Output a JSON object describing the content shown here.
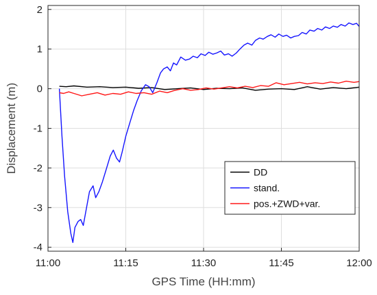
{
  "chart_data": {
    "type": "line",
    "title": "",
    "xlabel": "GPS Time (HH:mm)",
    "ylabel": "Displacement (m)",
    "x_unit": "minutes after 11:00",
    "xlim": [
      0,
      60
    ],
    "ylim": [
      -4.1,
      2.1
    ],
    "x_ticks": [
      {
        "value": 0,
        "label": "11:00"
      },
      {
        "value": 15,
        "label": "11:15"
      },
      {
        "value": 30,
        "label": "11:30"
      },
      {
        "value": 45,
        "label": "11:45"
      },
      {
        "value": 60,
        "label": "12:00"
      }
    ],
    "y_ticks": [
      {
        "value": 2,
        "label": "2"
      },
      {
        "value": 1,
        "label": "1"
      },
      {
        "value": 0,
        "label": "0"
      },
      {
        "value": -1,
        "label": "-1"
      },
      {
        "value": -2,
        "label": "-2"
      },
      {
        "value": -3,
        "label": "-3"
      },
      {
        "value": -4,
        "label": "-4"
      }
    ],
    "grid": true,
    "legend_position": "bottom-right",
    "series": [
      {
        "name": "DD",
        "color": "#000000",
        "x": [
          2.2,
          3.5,
          5,
          7.5,
          10,
          12.5,
          15,
          17.5,
          20,
          22.5,
          25,
          27.5,
          30,
          32.5,
          35,
          37.5,
          40,
          42.5,
          45,
          47.5,
          50,
          52.5,
          55,
          57.5,
          60
        ],
        "y": [
          0.06,
          0.05,
          0.07,
          0.04,
          0.05,
          0.03,
          0.04,
          0.01,
          0.03,
          -0.02,
          0.0,
          0.02,
          -0.02,
          0.01,
          0.0,
          0.02,
          -0.04,
          -0.01,
          0.0,
          -0.02,
          0.05,
          -0.01,
          0.03,
          0.0,
          0.04
        ]
      },
      {
        "name": "stand.",
        "color": "#1414ff",
        "x": [
          2.2,
          2.7,
          3.2,
          3.8,
          4.4,
          4.8,
          5.2,
          5.8,
          6.3,
          6.8,
          7.3,
          8.0,
          8.7,
          9.2,
          9.8,
          10.5,
          11.2,
          12.0,
          12.6,
          13.2,
          13.8,
          14.3,
          15.0,
          15.8,
          16.5,
          17.2,
          18.0,
          18.8,
          19.5,
          20.2,
          21.0,
          21.7,
          22.3,
          23.0,
          23.6,
          24.2,
          24.8,
          25.6,
          26.5,
          27.3,
          28.0,
          28.8,
          29.5,
          30.3,
          31.0,
          31.8,
          32.5,
          33.3,
          34.0,
          34.8,
          35.5,
          36.3,
          37.0,
          37.8,
          38.5,
          39.3,
          40.0,
          40.8,
          41.5,
          42.3,
          43.0,
          43.8,
          44.5,
          45.3,
          46.0,
          46.8,
          47.5,
          48.3,
          49.0,
          49.8,
          50.5,
          51.3,
          52.0,
          52.8,
          53.5,
          54.3,
          55.0,
          55.8,
          56.5,
          57.3,
          58.0,
          58.8,
          59.5,
          60.0
        ],
        "y": [
          0.0,
          -1.2,
          -2.2,
          -3.1,
          -3.65,
          -3.88,
          -3.5,
          -3.35,
          -3.3,
          -3.45,
          -3.1,
          -2.6,
          -2.45,
          -2.75,
          -2.6,
          -2.35,
          -2.05,
          -1.7,
          -1.55,
          -1.75,
          -1.85,
          -1.6,
          -1.2,
          -0.85,
          -0.55,
          -0.3,
          -0.05,
          0.1,
          0.05,
          -0.1,
          0.15,
          0.4,
          0.5,
          0.55,
          0.45,
          0.65,
          0.6,
          0.8,
          0.72,
          0.75,
          0.82,
          0.78,
          0.88,
          0.84,
          0.92,
          0.87,
          0.9,
          0.95,
          0.85,
          0.88,
          0.82,
          0.9,
          1.0,
          1.1,
          1.15,
          1.1,
          1.22,
          1.28,
          1.25,
          1.32,
          1.36,
          1.3,
          1.38,
          1.32,
          1.35,
          1.28,
          1.32,
          1.34,
          1.42,
          1.38,
          1.48,
          1.45,
          1.52,
          1.48,
          1.56,
          1.52,
          1.58,
          1.55,
          1.62,
          1.58,
          1.66,
          1.62,
          1.65,
          1.57
        ]
      },
      {
        "name": "pos.+ZWD+var.",
        "color": "#ff1414",
        "x": [
          2.2,
          3.0,
          4.0,
          5.0,
          6.5,
          8.0,
          9.5,
          11.0,
          12.5,
          14.0,
          15.5,
          17.0,
          18.5,
          20.0,
          21.5,
          23.0,
          24.5,
          26.0,
          27.5,
          29.0,
          30.5,
          32.0,
          33.5,
          35.0,
          36.5,
          38.0,
          39.5,
          41.0,
          42.5,
          44.0,
          45.5,
          47.0,
          48.5,
          50.0,
          51.5,
          53.0,
          54.5,
          56.0,
          57.5,
          59.0,
          60.0
        ],
        "y": [
          -0.1,
          -0.12,
          -0.08,
          -0.12,
          -0.18,
          -0.14,
          -0.1,
          -0.16,
          -0.12,
          -0.14,
          -0.08,
          -0.12,
          -0.1,
          -0.14,
          -0.06,
          -0.1,
          -0.04,
          0.0,
          -0.04,
          -0.02,
          0.02,
          -0.01,
          0.02,
          0.05,
          0.02,
          0.06,
          0.03,
          0.08,
          0.06,
          0.15,
          0.1,
          0.13,
          0.16,
          0.12,
          0.15,
          0.13,
          0.17,
          0.14,
          0.19,
          0.16,
          0.18
        ]
      }
    ]
  }
}
